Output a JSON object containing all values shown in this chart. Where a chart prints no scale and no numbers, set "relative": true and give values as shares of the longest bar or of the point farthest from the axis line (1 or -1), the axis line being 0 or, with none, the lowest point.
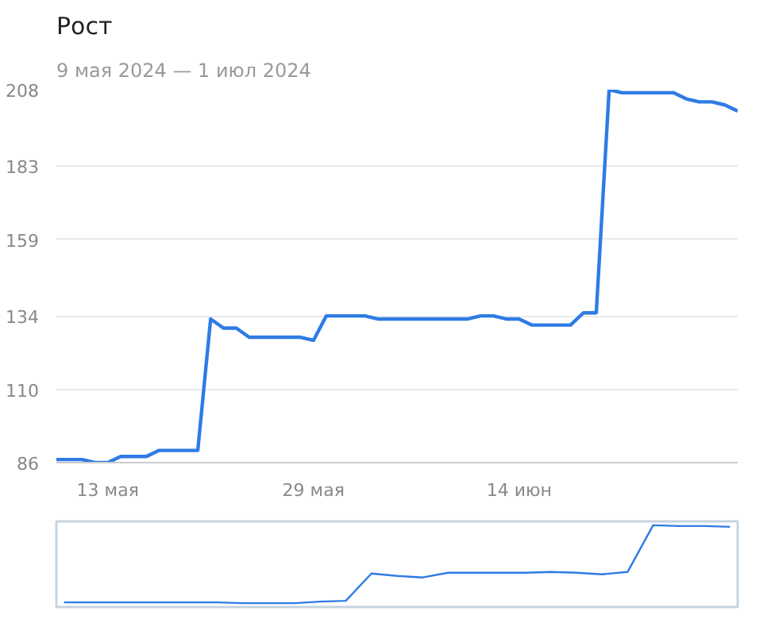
{
  "chart_data": [
    {
      "type": "line",
      "title": "Рост",
      "subtitle": "9 мая 2024 — 1 июл 2024",
      "x": [
        "2024-05-09",
        "2024-05-10",
        "2024-05-11",
        "2024-05-12",
        "2024-05-13",
        "2024-05-14",
        "2024-05-15",
        "2024-05-16",
        "2024-05-17",
        "2024-05-18",
        "2024-05-19",
        "2024-05-20",
        "2024-05-21",
        "2024-05-22",
        "2024-05-23",
        "2024-05-24",
        "2024-05-25",
        "2024-05-26",
        "2024-05-27",
        "2024-05-28",
        "2024-05-29",
        "2024-05-30",
        "2024-05-31",
        "2024-06-01",
        "2024-06-02",
        "2024-06-03",
        "2024-06-04",
        "2024-06-05",
        "2024-06-06",
        "2024-06-07",
        "2024-06-08",
        "2024-06-09",
        "2024-06-10",
        "2024-06-11",
        "2024-06-12",
        "2024-06-13",
        "2024-06-14",
        "2024-06-15",
        "2024-06-16",
        "2024-06-17",
        "2024-06-18",
        "2024-06-19",
        "2024-06-20",
        "2024-06-21",
        "2024-06-22",
        "2024-06-23",
        "2024-06-24",
        "2024-06-25",
        "2024-06-26",
        "2024-06-27",
        "2024-06-28",
        "2024-06-29",
        "2024-06-30",
        "2024-07-01"
      ],
      "series": [
        {
          "color": "#2f7be5",
          "values": [
            87,
            87,
            87,
            86,
            86,
            88,
            88,
            88,
            90,
            90,
            90,
            90,
            133,
            130,
            130,
            127,
            127,
            127,
            127,
            127,
            126,
            134,
            134,
            134,
            134,
            133,
            133,
            133,
            133,
            133,
            133,
            133,
            133,
            134,
            134,
            133,
            133,
            131,
            131,
            131,
            131,
            135,
            135,
            208,
            207,
            207,
            207,
            207,
            207,
            205,
            204,
            204,
            203,
            201
          ]
        }
      ],
      "xlim": [
        "2024-05-09",
        "2024-07-01"
      ],
      "xticks": [
        {
          "value": "2024-05-13",
          "label": "13 мая"
        },
        {
          "value": "2024-05-29",
          "label": "29 мая"
        },
        {
          "value": "2024-06-14",
          "label": "14 июн"
        }
      ],
      "ylim": [
        86,
        208
      ],
      "yticks": [
        86,
        110,
        134,
        159,
        183,
        208
      ],
      "grid": "y"
    },
    {
      "type": "line",
      "relative": true,
      "tick_labels": false,
      "categories": [
        null,
        null,
        null,
        null,
        null,
        null,
        null,
        null,
        null,
        null,
        null,
        null,
        null,
        null,
        null,
        null,
        null,
        null,
        null,
        null,
        null,
        null,
        null,
        null,
        null,
        null,
        null
      ],
      "series": [
        {
          "color": "#2f7be5",
          "values": [
            0.01,
            0.01,
            0.01,
            0.01,
            0.01,
            0.01,
            0.01,
            0,
            0,
            0,
            0.02,
            0.03,
            0.38,
            0.35,
            0.33,
            0.39,
            0.39,
            0.39,
            0.39,
            0.4,
            0.39,
            0.37,
            0.4,
            1.0,
            0.99,
            0.99,
            0.98
          ]
        }
      ],
      "grid": false
    }
  ]
}
